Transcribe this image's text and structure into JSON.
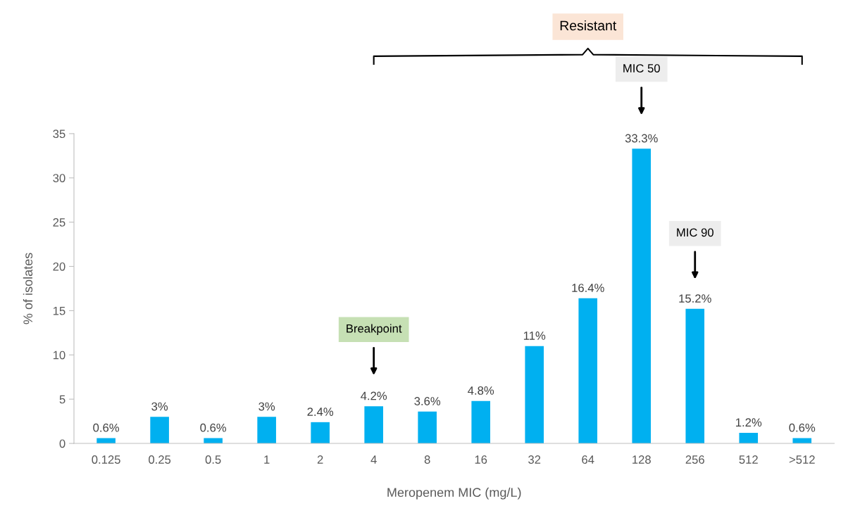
{
  "chart_data": {
    "type": "bar",
    "categories": [
      "0.125",
      "0.25",
      "0.5",
      "1",
      "2",
      "4",
      "8",
      "16",
      "32",
      "64",
      "128",
      "256",
      "512",
      ">512"
    ],
    "values": [
      0.6,
      3,
      0.6,
      3,
      2.4,
      4.2,
      3.6,
      4.8,
      11,
      16.4,
      33.3,
      15.2,
      1.2,
      0.6
    ],
    "value_labels": [
      "0.6%",
      "3%",
      "0.6%",
      "3%",
      "2.4%",
      "4.2%",
      "3.6%",
      "4.8%",
      "11%",
      "16.4%",
      "33.3%",
      "15.2%",
      "1.2%",
      "0.6%"
    ],
    "color": "#00b0f0",
    "xlabel": "Meropenem MIC (mg/L)",
    "ylabel": "% of isolates",
    "ylim": [
      0,
      35
    ],
    "yticks": [
      0,
      5,
      10,
      15,
      20,
      25,
      30,
      35
    ],
    "grid": false,
    "annotations": [
      "Resistant",
      "Breakpoint",
      "MIC 50",
      "MIC 90"
    ]
  }
}
